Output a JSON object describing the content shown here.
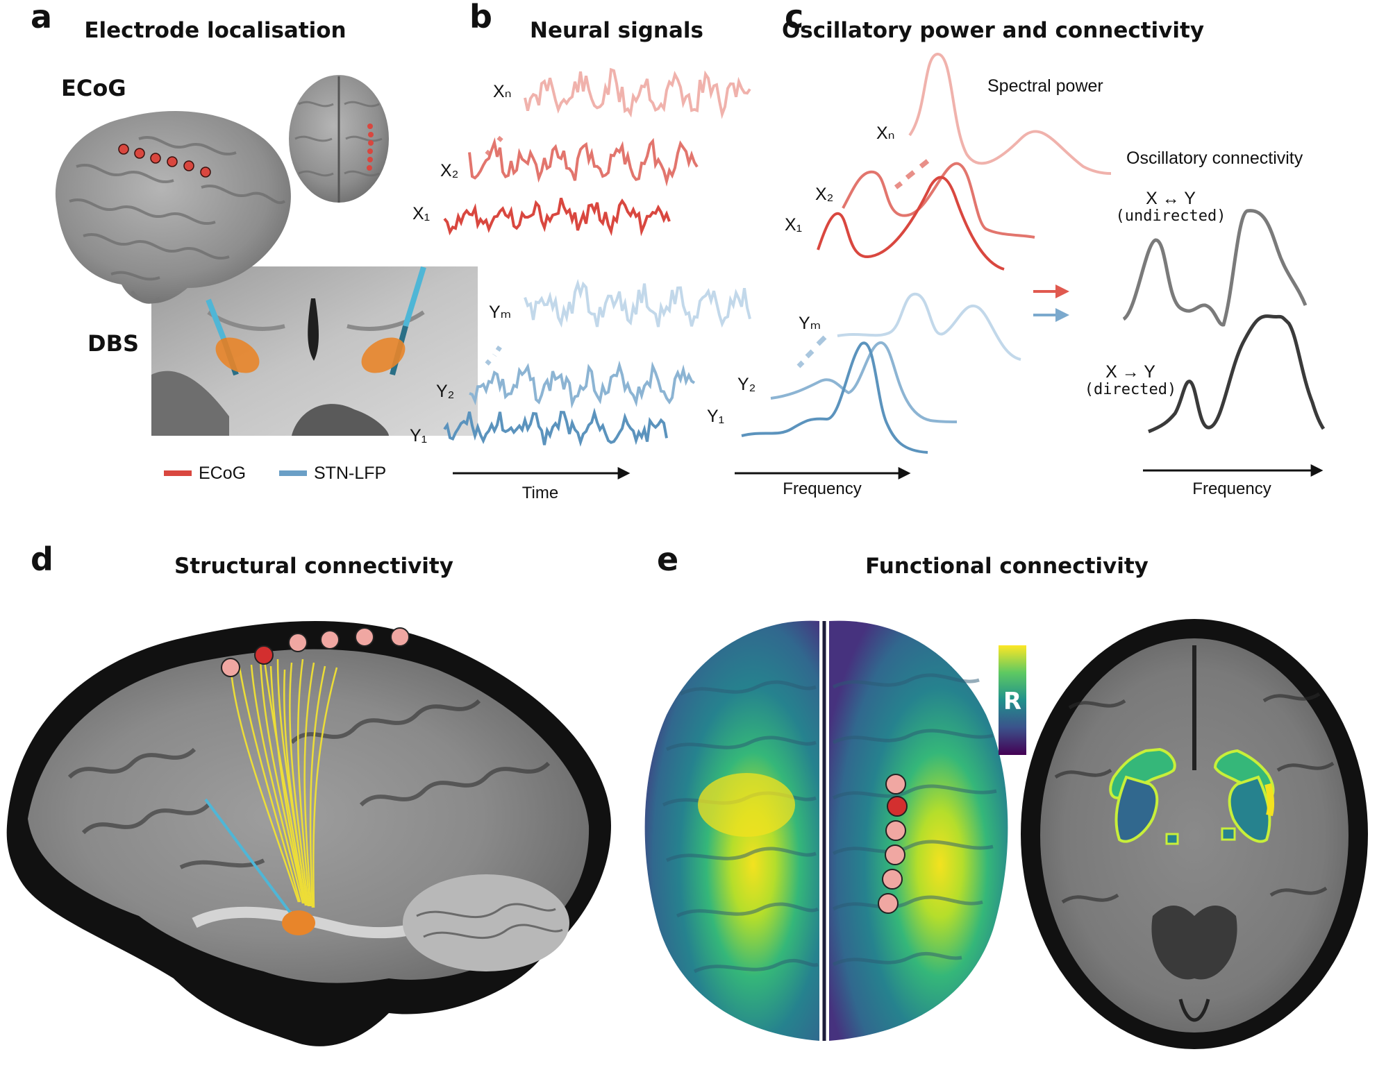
{
  "panels": {
    "a": {
      "letter": "a",
      "title": "Electrode localisation",
      "ecog": "ECoG",
      "dbs": "DBS",
      "legend": [
        {
          "label": "ECoG",
          "color": "#d9473f"
        },
        {
          "label": "STN-LFP",
          "color": "#6a9fc6"
        }
      ]
    },
    "b": {
      "letter": "b",
      "title": "Neural signals",
      "x_axis": "Time",
      "labels": {
        "xn": "Xₙ",
        "x2": "X₂",
        "x1": "X₁",
        "ym": "Yₘ",
        "y2": "Y₂",
        "y1": "Y₁"
      }
    },
    "c": {
      "letter": "c",
      "title": "Oscillatory power and connectivity",
      "spectral_power": "Spectral power",
      "oscillatory_connectivity": "Oscillatory connectivity",
      "undirected": "X ↔ Y",
      "undirected_sub": "(undirected)",
      "directed": "X → Y",
      "directed_sub": "(directed)",
      "x_axis_left": "Frequency",
      "x_axis_right": "Frequency",
      "labels": {
        "xn": "Xₙ",
        "x2": "X₂",
        "x1": "X₁",
        "ym": "Yₘ",
        "y2": "Y₂",
        "y1": "Y₁"
      }
    },
    "d": {
      "letter": "d",
      "title": "Structural connectivity"
    },
    "e": {
      "letter": "e",
      "title": "Functional connectivity",
      "colorbar_label": "R"
    }
  },
  "colors": {
    "ecog_dark": "#d9473f",
    "ecog_mid": "#e2756d",
    "ecog_light": "#f0b2ac",
    "lfp_dark": "#5b93bd",
    "lfp_mid": "#8cb4d3",
    "lfp_light": "#c2d8ea",
    "conn_undirected": "#7a7a7a",
    "conn_directed": "#3a3a3a",
    "fiber": "#f2e233",
    "stn": "#e8852a",
    "lead": "#4fb6d6"
  }
}
